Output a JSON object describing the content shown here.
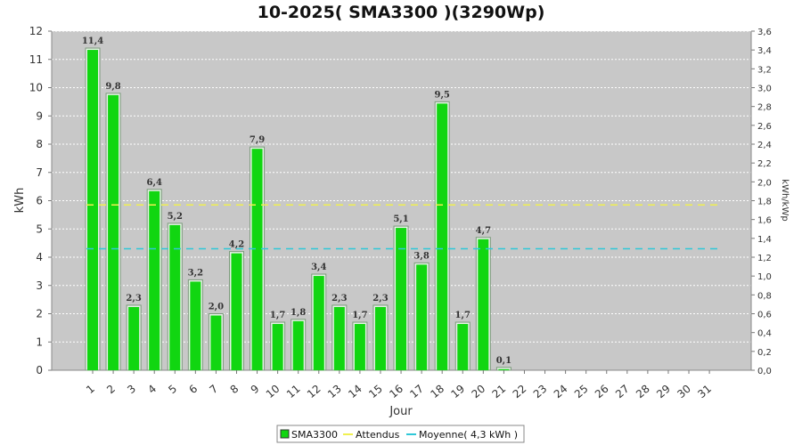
{
  "chart_data": {
    "type": "bar",
    "title": "10-2025( SMA3300 )(3290Wp)",
    "xlabel": "Jour",
    "ylabel": "kWh",
    "y2label": "kWh/kWp",
    "ylim": [
      0,
      12
    ],
    "y2lim": [
      0,
      3.6
    ],
    "yticks": [
      "0",
      "1",
      "2",
      "3",
      "4",
      "5",
      "6",
      "7",
      "8",
      "9",
      "10",
      "11",
      "12"
    ],
    "y2ticks": [
      "0,0",
      "0,2",
      "0,4",
      "0,6",
      "0,8",
      "1,0",
      "1,2",
      "1,4",
      "1,6",
      "1,8",
      "2,0",
      "2,2",
      "2,4",
      "2,6",
      "2,8",
      "3,0",
      "3,2",
      "3,4",
      "3,6"
    ],
    "categories": [
      "1",
      "2",
      "3",
      "4",
      "5",
      "6",
      "7",
      "8",
      "9",
      "10",
      "11",
      "12",
      "13",
      "14",
      "15",
      "16",
      "17",
      "18",
      "19",
      "20",
      "21",
      "22",
      "23",
      "24",
      "25",
      "26",
      "27",
      "28",
      "29",
      "30",
      "31"
    ],
    "series": [
      {
        "name": "SMA3300",
        "values": [
          11.4,
          9.8,
          2.3,
          6.4,
          5.2,
          3.2,
          2.0,
          4.2,
          7.9,
          1.7,
          1.8,
          3.4,
          2.3,
          1.7,
          2.3,
          5.1,
          3.8,
          9.5,
          1.7,
          4.7,
          0.1,
          0,
          0,
          0,
          0,
          0,
          0,
          0,
          0,
          0,
          0
        ],
        "labels": [
          "11,4",
          "9,8",
          "2,3",
          "6,4",
          "5,2",
          "3,2",
          "2,0",
          "4,2",
          "7,9",
          "1,7",
          "1,8",
          "3,4",
          "2,3",
          "1,7",
          "2,3",
          "5,1",
          "3,8",
          "9,5",
          "1,7",
          "4,7",
          "0,1",
          "",
          "",
          "",
          "",
          "",
          "",
          "",
          "",
          "",
          ""
        ],
        "color": "#11d611"
      }
    ],
    "lines": [
      {
        "name": "Attendus",
        "value": 5.85,
        "color": "#f0f050"
      },
      {
        "name": "Moyenne( 4,3 kWh )",
        "value": 4.3,
        "color": "#30c8d8"
      }
    ],
    "grid": true,
    "legend": "bottom",
    "plot_bg": "#c8c8c8"
  }
}
